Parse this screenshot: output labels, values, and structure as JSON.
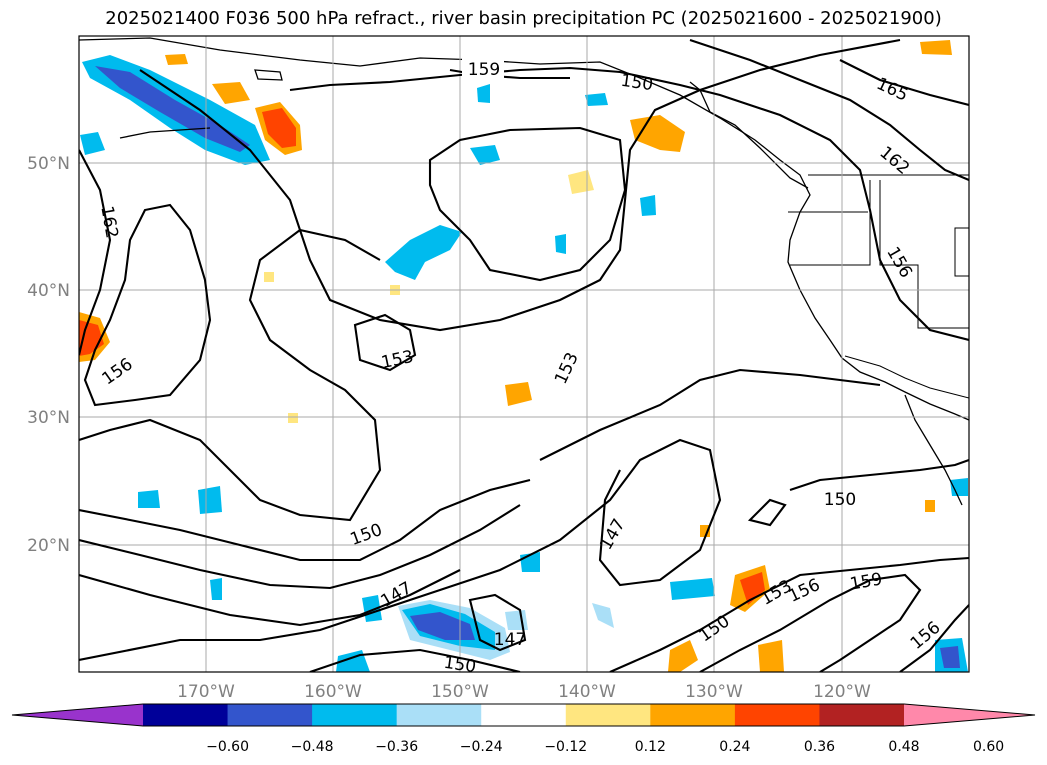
{
  "title": "2025021400 F036 500 hPa refract., river basin precipitation PC (2025021600 - 2025021900)",
  "map": {
    "lat_labels": [
      "50°N",
      "40°N",
      "30°N",
      "20°N"
    ],
    "lon_labels": [
      "170°W",
      "160°W",
      "150°W",
      "140°W",
      "130°W",
      "120°W"
    ],
    "contour_labels": [
      "159",
      "150",
      "165",
      "162",
      "162",
      "156",
      "153",
      "153",
      "156",
      "150",
      "147",
      "150",
      "147",
      "147",
      "150",
      "150",
      "153",
      "156",
      "159",
      "156"
    ],
    "grid_color": "#aaaaaa",
    "label_color": "#808080"
  },
  "colorbar": {
    "colors": [
      "#9933cc",
      "#000099",
      "#3355cc",
      "#00bbee",
      "#aadff7",
      "#ffffff",
      "#ffe680",
      "#ffa500",
      "#ff4400",
      "#b22222",
      "#ff88aa"
    ],
    "ticks": [
      "−0.60",
      "−0.48",
      "−0.36",
      "−0.24",
      "−0.12",
      "0.12",
      "0.24",
      "0.36",
      "0.48",
      "0.60"
    ]
  }
}
